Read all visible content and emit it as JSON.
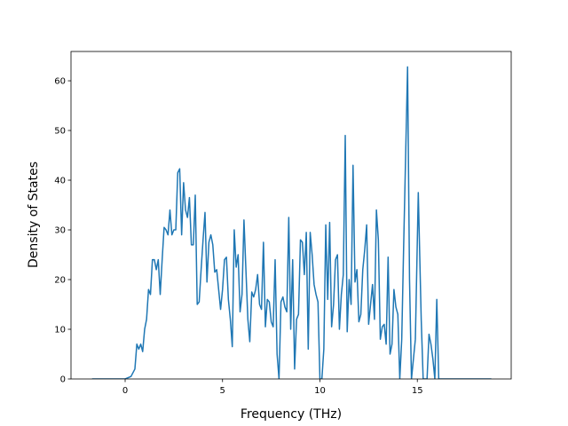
{
  "chart_data": {
    "type": "line",
    "xlabel": "Frequency (THz)",
    "ylabel": "Density of States",
    "color": "#1f77b4",
    "x": [
      -1.7,
      0,
      0.3,
      0.5,
      0.6,
      0.7,
      0.8,
      0.9,
      1.0,
      1.1,
      1.2,
      1.3,
      1.4,
      1.5,
      1.6,
      1.7,
      1.8,
      1.9,
      2.0,
      2.1,
      2.2,
      2.3,
      2.4,
      2.5,
      2.6,
      2.7,
      2.8,
      2.9,
      3.0,
      3.1,
      3.2,
      3.3,
      3.4,
      3.5,
      3.6,
      3.7,
      3.8,
      3.9,
      4.0,
      4.1,
      4.2,
      4.3,
      4.4,
      4.5,
      4.6,
      4.7,
      4.8,
      4.9,
      5.0,
      5.1,
      5.2,
      5.3,
      5.4,
      5.5,
      5.6,
      5.7,
      5.8,
      5.9,
      6.0,
      6.1,
      6.2,
      6.3,
      6.4,
      6.5,
      6.6,
      6.7,
      6.8,
      6.9,
      7.0,
      7.1,
      7.2,
      7.3,
      7.4,
      7.5,
      7.6,
      7.7,
      7.8,
      7.9,
      8.0,
      8.1,
      8.2,
      8.3,
      8.4,
      8.5,
      8.6,
      8.7,
      8.8,
      8.9,
      9.0,
      9.1,
      9.2,
      9.3,
      9.4,
      9.5,
      9.6,
      9.7,
      9.8,
      9.9,
      10.0,
      10.1,
      10.2,
      10.3,
      10.4,
      10.5,
      10.6,
      10.7,
      10.8,
      10.9,
      11.0,
      11.1,
      11.2,
      11.3,
      11.4,
      11.5,
      11.6,
      11.7,
      11.8,
      11.9,
      12.0,
      12.1,
      12.2,
      12.3,
      12.4,
      12.5,
      12.6,
      12.7,
      12.8,
      12.9,
      13.0,
      13.1,
      13.2,
      13.3,
      13.4,
      13.5,
      13.6,
      13.7,
      13.8,
      13.9,
      14.0,
      14.1,
      14.2,
      14.3,
      14.5,
      14.6,
      14.7,
      14.9,
      15.05,
      15.2,
      15.3,
      15.5,
      15.6,
      15.7,
      15.8,
      15.9,
      16.0,
      16.1,
      18.8
    ],
    "values": [
      0,
      0,
      0.5,
      2,
      7,
      6,
      7,
      5.5,
      10,
      12,
      18,
      17,
      24,
      24,
      22,
      24,
      17,
      24,
      30.5,
      30,
      29,
      34,
      29,
      30,
      30,
      41.5,
      42.3,
      29,
      39.5,
      34,
      32.5,
      36.5,
      27,
      27,
      37,
      15,
      15.5,
      22,
      28,
      33.5,
      19.5,
      27.5,
      29,
      27,
      21.5,
      22,
      18,
      14,
      18,
      24,
      24.5,
      16,
      12,
      6.5,
      30,
      22.5,
      25,
      13.5,
      17,
      32,
      22,
      12,
      7.5,
      17.5,
      16.5,
      18,
      21,
      15,
      14,
      27.5,
      10.5,
      16,
      15.5,
      11.5,
      10.5,
      24,
      5,
      0,
      15.5,
      16.5,
      14.5,
      13.5,
      32.5,
      10,
      24,
      2,
      12,
      13,
      28,
      27.5,
      21,
      29.5,
      6,
      29.5,
      25,
      19,
      17,
      15.5,
      0,
      0,
      6,
      31,
      16,
      31.5,
      10.5,
      15,
      24,
      25,
      10,
      17,
      21,
      49,
      9.5,
      20,
      15,
      43,
      19.5,
      22,
      11.5,
      13,
      22,
      26,
      31,
      11,
      15,
      19,
      12,
      34,
      28,
      8,
      10.5,
      11,
      7,
      24.5,
      5,
      7,
      18,
      14.5,
      13,
      0,
      8,
      27,
      62.8,
      20,
      0,
      8,
      37.5,
      12,
      0,
      0,
      9,
      7,
      4,
      0,
      16,
      0,
      0
    ],
    "xlim": [
      -2.78,
      19.82
    ],
    "ylim": [
      0,
      65.9
    ],
    "xticks": [
      0,
      5,
      10,
      15
    ],
    "yticks": [
      0,
      10,
      20,
      30,
      40,
      50,
      60
    ]
  }
}
